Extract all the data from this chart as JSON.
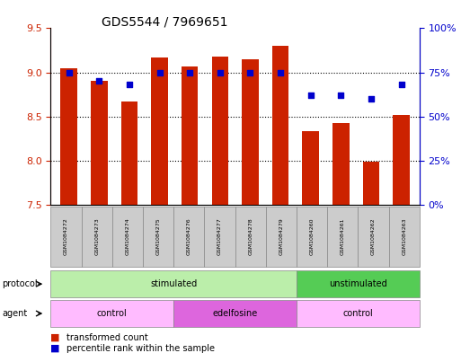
{
  "title": "GDS5544 / 7969651",
  "samples": [
    "GSM1084272",
    "GSM1084273",
    "GSM1084274",
    "GSM1084275",
    "GSM1084276",
    "GSM1084277",
    "GSM1084278",
    "GSM1084279",
    "GSM1084260",
    "GSM1084261",
    "GSM1084262",
    "GSM1084263"
  ],
  "bar_values": [
    9.05,
    8.9,
    8.67,
    9.17,
    9.07,
    9.18,
    9.15,
    9.3,
    8.33,
    8.43,
    7.99,
    8.52
  ],
  "bar_bottom": 7.5,
  "dot_values_pct": [
    75,
    70,
    68,
    75,
    75,
    75,
    75,
    75,
    62,
    62,
    60,
    68
  ],
  "ylim_left": [
    7.5,
    9.5
  ],
  "ylim_right": [
    0,
    100
  ],
  "yticks_left": [
    7.5,
    8.0,
    8.5,
    9.0,
    9.5
  ],
  "yticks_right": [
    0,
    25,
    50,
    75,
    100
  ],
  "ytick_labels_right": [
    "0%",
    "25%",
    "50%",
    "75%",
    "100%"
  ],
  "bar_color": "#CC2200",
  "dot_color": "#0000CC",
  "protocol_groups": [
    {
      "label": "stimulated",
      "start": 0,
      "end": 8,
      "color": "#AAEEA A"
    },
    {
      "label": "unstimulated",
      "start": 8,
      "end": 12,
      "color": "#55CC55"
    }
  ],
  "agent_groups": [
    {
      "label": "control",
      "start": 0,
      "end": 4,
      "color": "#FFAAFF"
    },
    {
      "label": "edelfosine",
      "start": 4,
      "end": 8,
      "color": "#EE77EE"
    },
    {
      "label": "control",
      "start": 8,
      "end": 12,
      "color": "#FFAAFF"
    }
  ],
  "legend_items": [
    {
      "label": "transformed count",
      "color": "#CC2200"
    },
    {
      "label": "percentile rank within the sample",
      "color": "#0000CC"
    }
  ],
  "protocol_label": "protocol",
  "agent_label": "agent",
  "tick_label_color_left": "#CC2200",
  "tick_label_color_right": "#0000CC",
  "bg_color": "#FFFFFF"
}
